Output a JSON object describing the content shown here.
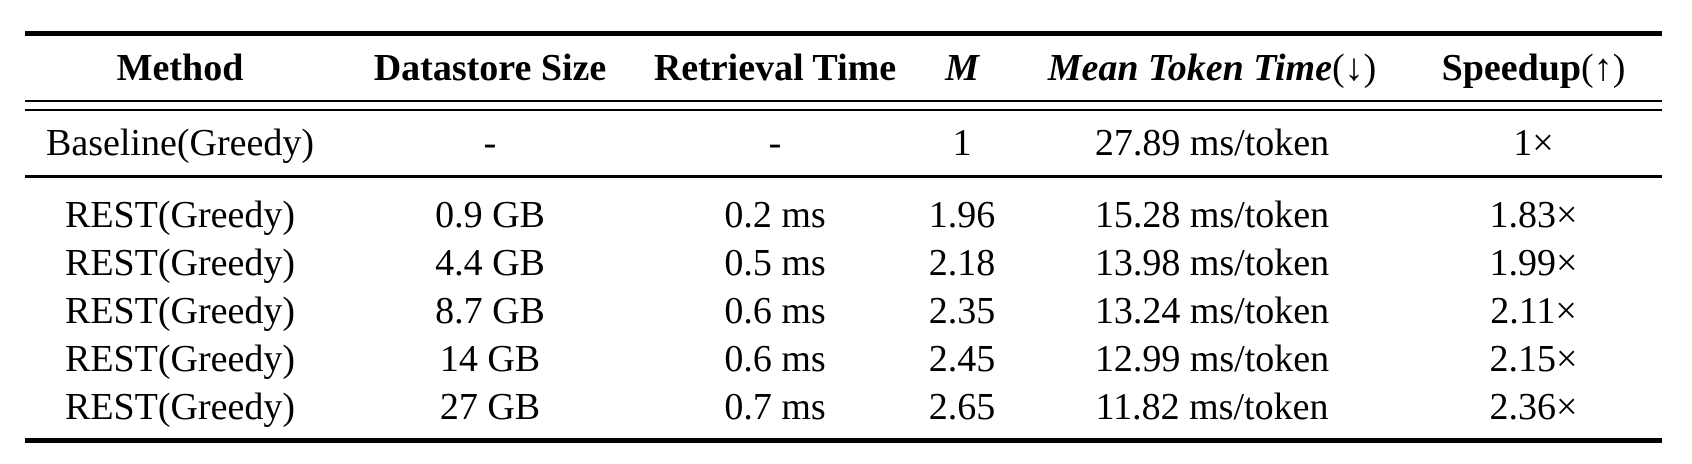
{
  "figure": {
    "background_color": "#ffffff",
    "text_color": "#000000",
    "rule_color": "#000000"
  },
  "table": {
    "columns": [
      {
        "label": "Method",
        "suffix": ""
      },
      {
        "label": "Datastore Size",
        "suffix": ""
      },
      {
        "label": "Retrieval Time",
        "suffix": ""
      },
      {
        "label": "M",
        "suffix": ""
      },
      {
        "label": "Mean Token Time",
        "suffix": "(↓)"
      },
      {
        "label": "Speedup",
        "suffix": "(↑)"
      }
    ],
    "baseline_row": {
      "cells": [
        "Baseline(Greedy)",
        "-",
        "-",
        "1",
        "27.89 ms/token",
        "1×"
      ]
    },
    "rest_rows": [
      {
        "cells": [
          "REST(Greedy)",
          "0.9 GB",
          "0.2 ms",
          "1.96",
          "15.28 ms/token",
          "1.83×"
        ]
      },
      {
        "cells": [
          "REST(Greedy)",
          "4.4 GB",
          "0.5 ms",
          "2.18",
          "13.98 ms/token",
          "1.99×"
        ]
      },
      {
        "cells": [
          "REST(Greedy)",
          "8.7 GB",
          "0.6 ms",
          "2.35",
          "13.24 ms/token",
          "2.11×"
        ]
      },
      {
        "cells": [
          "REST(Greedy)",
          "14 GB",
          "0.6 ms",
          "2.45",
          "12.99 ms/token",
          "2.15×"
        ]
      },
      {
        "cells": [
          "REST(Greedy)",
          "27 GB",
          "0.7 ms",
          "2.65",
          "11.82 ms/token",
          "2.36×"
        ]
      }
    ]
  }
}
